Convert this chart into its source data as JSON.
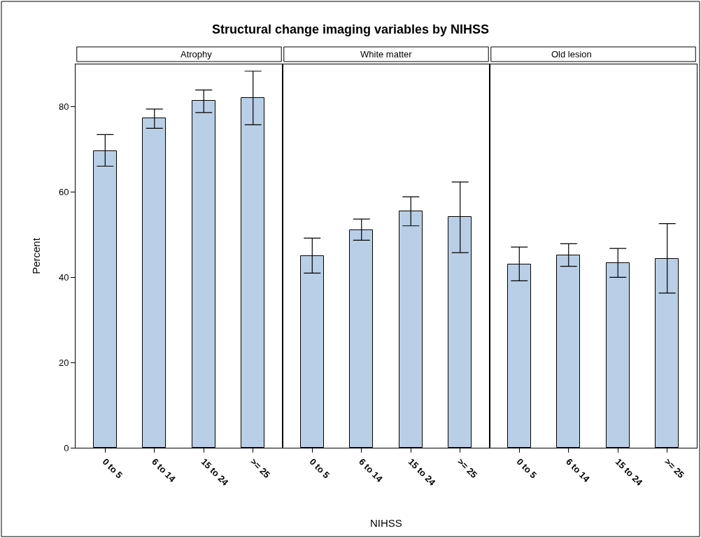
{
  "chart_data": [
    {
      "type": "bar",
      "title": "Structural change imaging variables by NIHSS",
      "subtitle": "Atrophy",
      "ylabel": "Percent",
      "categories": [
        "0 to 5",
        "6 to 14",
        "15 to 24",
        ">= 25"
      ],
      "values": [
        69.7,
        77.4,
        81.4,
        82.1
      ],
      "errors": [
        [
          66.1,
          73.5
        ],
        [
          75.0,
          79.5
        ],
        [
          78.7,
          84.0
        ],
        [
          75.8,
          88.4
        ]
      ],
      "color": "#b9cfe7",
      "ylim": [
        0,
        90
      ],
      "yticks": [
        0,
        20,
        40,
        60,
        80
      ],
      "grid": false
    },
    {
      "type": "bar",
      "subtitle": "White matter",
      "xlabel": "NIHSS",
      "categories": [
        "0 to 5",
        "6 to 14",
        "15 to 24",
        ">= 25"
      ],
      "values": [
        45.0,
        51.1,
        55.5,
        54.2
      ],
      "errors": [
        [
          41.0,
          49.2
        ],
        [
          48.7,
          53.7
        ],
        [
          52.1,
          58.9
        ],
        [
          45.8,
          62.4
        ]
      ],
      "color": "#b9cfe7",
      "ylim": [
        0,
        90
      ],
      "tick_labels": "x",
      "grid": false
    },
    {
      "type": "bar",
      "subtitle": "Old lesion",
      "categories": [
        "0 to 5",
        "6 to 14",
        "15 to 24",
        ">= 25"
      ],
      "values": [
        43.1,
        45.2,
        43.4,
        44.4
      ],
      "errors": [
        [
          39.2,
          47.1
        ],
        [
          42.6,
          47.9
        ],
        [
          40.0,
          46.8
        ],
        [
          36.3,
          52.6
        ]
      ],
      "color": "#b9cfe7",
      "ylim": [
        0,
        90
      ],
      "tick_labels": "x",
      "grid": false
    }
  ]
}
